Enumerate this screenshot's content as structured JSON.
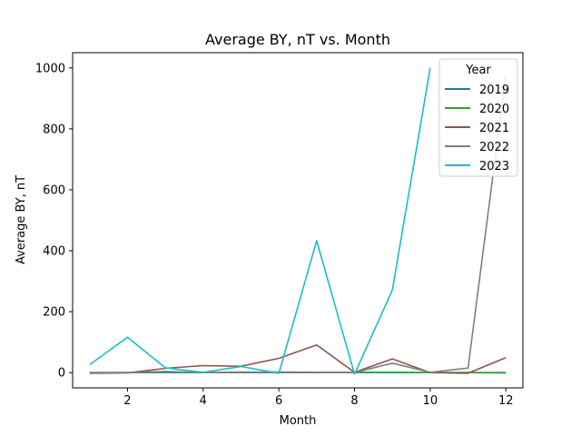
{
  "chart_data": {
    "type": "line",
    "title": "Average BY, nT vs. Month",
    "xlabel": "Month",
    "ylabel": "Average BY, nT",
    "xlim": [
      0.55,
      12.45
    ],
    "ylim": [
      -50,
      1050
    ],
    "xticks": [
      2,
      4,
      6,
      8,
      10,
      12
    ],
    "yticks": [
      0,
      200,
      400,
      600,
      800,
      1000
    ],
    "grid": false,
    "legend": {
      "title": "Year",
      "placement": "top-right"
    },
    "series": [
      {
        "name": "2019",
        "color": "#1f77b4",
        "x": [
          1,
          2,
          3,
          4,
          5,
          6,
          7,
          8,
          9,
          10,
          11,
          12
        ],
        "y": [
          0,
          0,
          0,
          0,
          0,
          0,
          0,
          0,
          0,
          0,
          0,
          0
        ]
      },
      {
        "name": "2020",
        "color": "#2ca02c",
        "x": [
          1,
          2,
          3,
          4,
          5,
          6,
          7,
          8,
          9,
          10,
          11,
          12
        ],
        "y": [
          0,
          0,
          2,
          0,
          1,
          2,
          1,
          1,
          1,
          0,
          0,
          -1
        ]
      },
      {
        "name": "2021",
        "color": "#8c564b",
        "x": [
          1,
          2,
          3,
          4,
          5,
          6,
          7,
          8,
          9,
          10,
          11,
          12
        ],
        "y": [
          -2,
          -1,
          14,
          23,
          21,
          47,
          91,
          1,
          45,
          0,
          -2,
          49
        ]
      },
      {
        "name": "2022",
        "color": "#7f7f7f",
        "x": [
          1,
          2,
          3,
          4,
          5,
          6,
          7,
          8,
          9,
          10,
          11,
          12
        ],
        "y": [
          -1,
          0,
          4,
          0,
          2,
          1,
          1,
          0,
          31,
          1,
          15,
          975
        ]
      },
      {
        "name": "2023",
        "color": "#17becf",
        "x": [
          1,
          2,
          3,
          4,
          5,
          6,
          7,
          8,
          9,
          10
        ],
        "y": [
          26,
          116,
          16,
          1,
          20,
          -2,
          433,
          -5,
          271,
          1000
        ]
      }
    ]
  }
}
